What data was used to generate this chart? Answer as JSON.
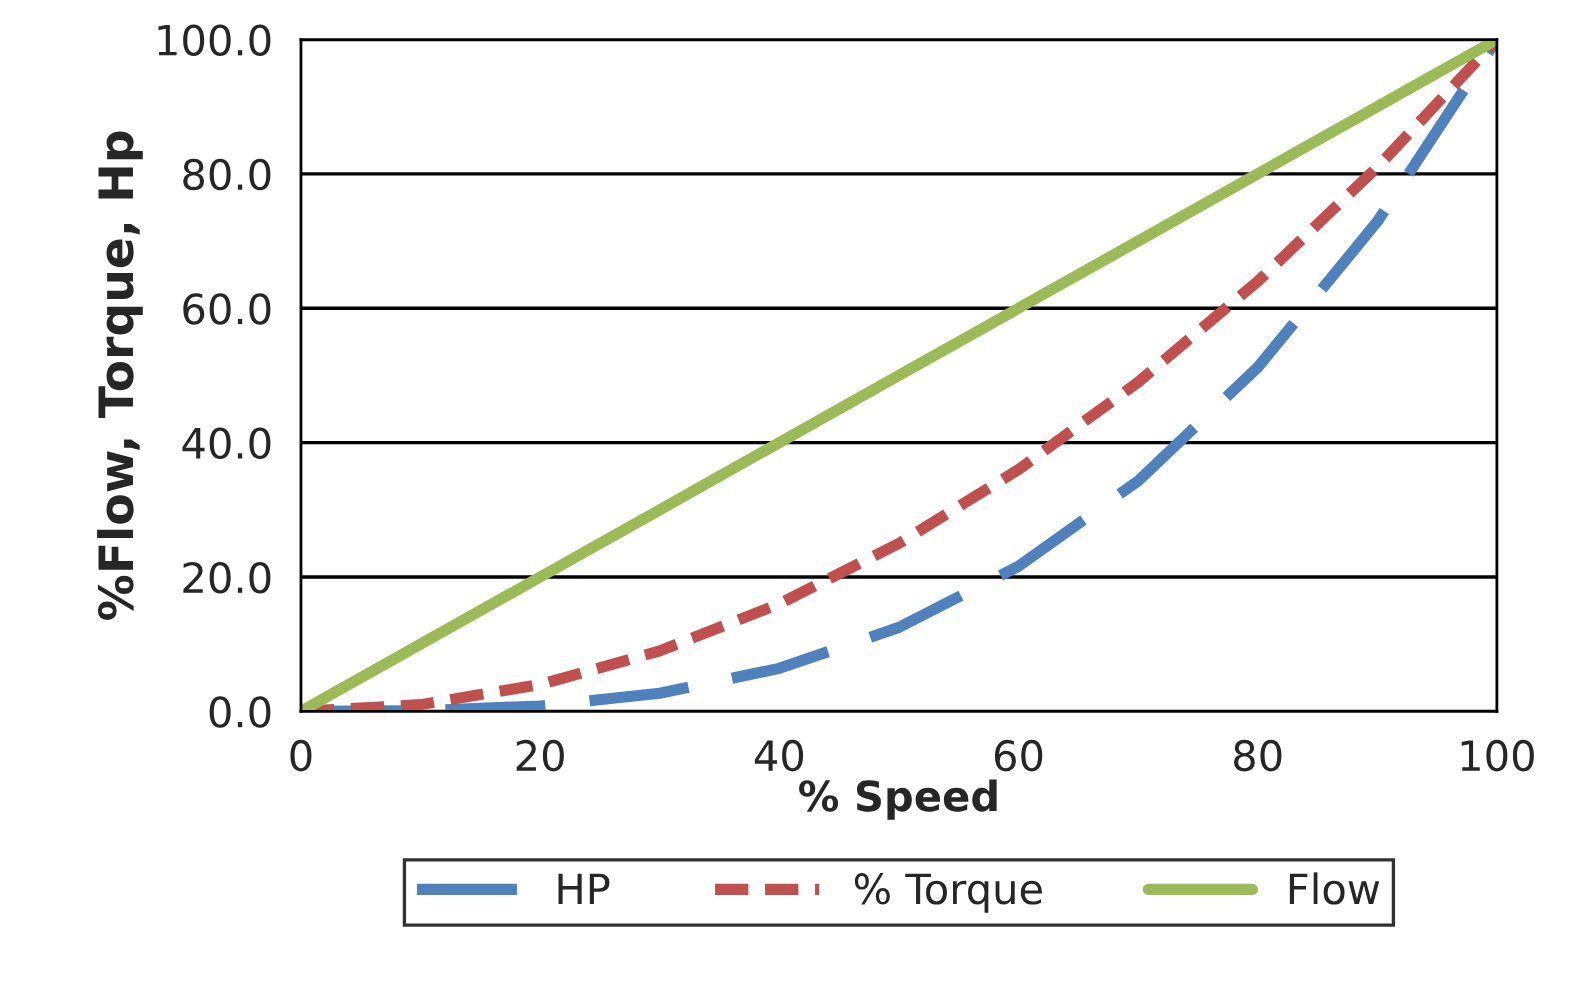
{
  "chart_data": {
    "type": "line",
    "xlabel": "% Speed",
    "ylabel": "%Flow, Torque, Hp",
    "x": [
      0,
      10,
      20,
      30,
      40,
      50,
      60,
      70,
      80,
      90,
      100
    ],
    "series": [
      {
        "name": "HP",
        "color": "#4f81bd",
        "line_style": "dashed",
        "values": [
          0,
          0.1,
          0.8,
          2.7,
          6.4,
          12.5,
          21.6,
          34.3,
          51.2,
          72.9,
          100
        ]
      },
      {
        "name": "% Torque",
        "color": "#c0504d",
        "line_style": "dotted",
        "values": [
          0,
          1,
          4,
          9,
          16,
          25,
          36,
          49,
          64,
          81,
          100
        ]
      },
      {
        "name": "Flow",
        "color": "#9bbb59",
        "line_style": "solid",
        "values": [
          0,
          10,
          20,
          30,
          40,
          50,
          60,
          70,
          80,
          90,
          100
        ]
      }
    ],
    "xlim": [
      0,
      100
    ],
    "xticks": [
      0,
      20,
      40,
      60,
      80,
      100
    ],
    "ylim": [
      0,
      100
    ],
    "yticks": [
      {
        "value": 0,
        "label": "0.0"
      },
      {
        "value": 20,
        "label": "20.0"
      },
      {
        "value": 40,
        "label": "40.0"
      },
      {
        "value": 60,
        "label": "60.0"
      },
      {
        "value": 80,
        "label": "80.0"
      },
      {
        "value": 100,
        "label": "100.0"
      }
    ],
    "grid": "y",
    "legend": "bottom",
    "marker": "none"
  }
}
